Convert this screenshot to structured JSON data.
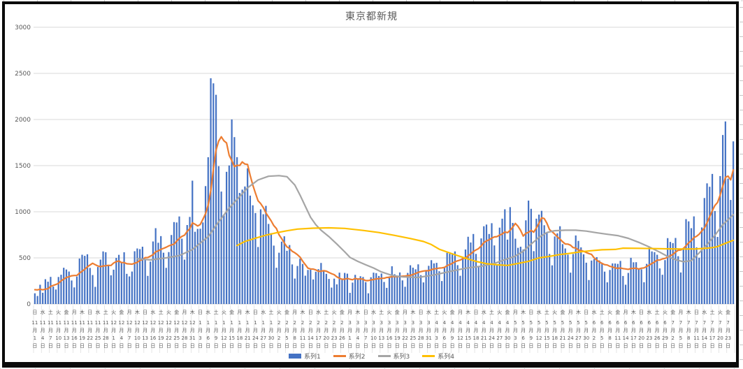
{
  "chart_data": {
    "type": "combo",
    "title": "東京都新規",
    "xlabel": "",
    "ylabel": "",
    "ylim": [
      0,
      3000
    ],
    "y_ticks": [
      0,
      500,
      1000,
      1500,
      2000,
      2500,
      3000
    ],
    "grid": "horizontal",
    "legend_position": "bottom",
    "x_is_daily_dates": "2020-11-01 through 2021-07-25, axis labels every 3 days",
    "month_suffix": "月",
    "day_suffix": "日",
    "axis_labels": [
      [
        "日",
        11,
        1
      ],
      [
        "水",
        11,
        4
      ],
      [
        "土",
        11,
        7
      ],
      [
        "火",
        11,
        10
      ],
      [
        "金",
        11,
        13
      ],
      [
        "月",
        11,
        16
      ],
      [
        "木",
        11,
        19
      ],
      [
        "日",
        11,
        22
      ],
      [
        "水",
        11,
        25
      ],
      [
        "土",
        11,
        28
      ],
      [
        "火",
        12,
        1
      ],
      [
        "金",
        12,
        4
      ],
      [
        "月",
        12,
        7
      ],
      [
        "木",
        12,
        10
      ],
      [
        "日",
        12,
        13
      ],
      [
        "水",
        12,
        16
      ],
      [
        "土",
        12,
        19
      ],
      [
        "火",
        12,
        22
      ],
      [
        "金",
        12,
        25
      ],
      [
        "月",
        12,
        28
      ],
      [
        "木",
        12,
        31
      ],
      [
        "日",
        1,
        3
      ],
      [
        "水",
        1,
        6
      ],
      [
        "土",
        1,
        9
      ],
      [
        "火",
        1,
        12
      ],
      [
        "金",
        1,
        15
      ],
      [
        "月",
        1,
        18
      ],
      [
        "木",
        1,
        21
      ],
      [
        "日",
        1,
        24
      ],
      [
        "水",
        1,
        27
      ],
      [
        "土",
        1,
        30
      ],
      [
        "火",
        2,
        2
      ],
      [
        "金",
        2,
        5
      ],
      [
        "月",
        2,
        8
      ],
      [
        "木",
        2,
        11
      ],
      [
        "日",
        2,
        14
      ],
      [
        "水",
        2,
        17
      ],
      [
        "土",
        2,
        20
      ],
      [
        "火",
        2,
        23
      ],
      [
        "金",
        2,
        26
      ],
      [
        "月",
        3,
        1
      ],
      [
        "木",
        3,
        4
      ],
      [
        "日",
        3,
        7
      ],
      [
        "水",
        3,
        10
      ],
      [
        "土",
        3,
        13
      ],
      [
        "火",
        3,
        16
      ],
      [
        "金",
        3,
        19
      ],
      [
        "月",
        3,
        22
      ],
      [
        "木",
        3,
        25
      ],
      [
        "日",
        3,
        28
      ],
      [
        "水",
        3,
        31
      ],
      [
        "土",
        4,
        3
      ],
      [
        "火",
        4,
        6
      ],
      [
        "金",
        4,
        9
      ],
      [
        "月",
        4,
        12
      ],
      [
        "木",
        4,
        15
      ],
      [
        "日",
        4,
        18
      ],
      [
        "水",
        4,
        21
      ],
      [
        "土",
        4,
        24
      ],
      [
        "火",
        4,
        27
      ],
      [
        "金",
        4,
        30
      ],
      [
        "月",
        5,
        3
      ],
      [
        "木",
        5,
        6
      ],
      [
        "日",
        5,
        9
      ],
      [
        "水",
        5,
        12
      ],
      [
        "土",
        5,
        15
      ],
      [
        "火",
        5,
        18
      ],
      [
        "金",
        5,
        21
      ],
      [
        "月",
        5,
        24
      ],
      [
        "木",
        5,
        27
      ],
      [
        "日",
        5,
        30
      ],
      [
        "水",
        6,
        2
      ],
      [
        "土",
        6,
        5
      ],
      [
        "火",
        6,
        8
      ],
      [
        "金",
        6,
        11
      ],
      [
        "月",
        6,
        14
      ],
      [
        "木",
        6,
        17
      ],
      [
        "日",
        6,
        20
      ],
      [
        "水",
        6,
        23
      ],
      [
        "土",
        6,
        26
      ],
      [
        "火",
        6,
        29
      ],
      [
        "金",
        7,
        2
      ],
      [
        "月",
        7,
        5
      ],
      [
        "木",
        7,
        8
      ],
      [
        "日",
        7,
        11
      ],
      [
        "水",
        7,
        14
      ],
      [
        "土",
        7,
        17
      ],
      [
        "火",
        7,
        20
      ],
      [
        "金",
        7,
        23
      ]
    ],
    "series": [
      {
        "name": "系列1",
        "type": "bar",
        "color": "#4472C4",
        "values": [
          116,
          87,
          209,
          122,
          269,
          242,
          294,
          189,
          157,
          293,
          317,
          393,
          374,
          352,
          255,
          180,
          298,
          493,
          534,
          522,
          539,
          391,
          314,
          186,
          401,
          481,
          570,
          561,
          418,
          311,
          372,
          500,
          533,
          449,
          561,
          327,
          299,
          352,
          572,
          602,
          595,
          621,
          480,
          305,
          460,
          678,
          822,
          664,
          736,
          556,
          392,
          563,
          748,
          888,
          884,
          949,
          708,
          481,
          856,
          944,
          1337,
          783,
          814,
          816,
          884,
          1278,
          1591,
          2447,
          2392,
          2268,
          1494,
          1219,
          970,
          1433,
          1502,
          2001,
          1809,
          1592,
          1204,
          1240,
          1274,
          1471,
          1175,
          1070,
          986,
          618,
          1026,
          973,
          1064,
          868,
          769,
          633,
          393,
          556,
          676,
          734,
          577,
          639,
          429,
          276,
          412,
          491,
          434,
          307,
          369,
          371,
          266,
          350,
          378,
          445,
          353,
          327,
          272,
          178,
          275,
          213,
          340,
          270,
          337,
          329,
          121,
          232,
          316,
          279,
          301,
          293,
          237,
          116,
          290,
          340,
          335,
          304,
          330,
          239,
          175,
          300,
          409,
          323,
          303,
          342,
          256,
          187,
          337,
          420,
          394,
          376,
          430,
          313,
          234,
          364,
          414,
          475,
          440,
          446,
          355,
          249,
          399,
          555,
          545,
          537,
          570,
          421,
          306,
          510,
          591,
          729,
          667,
          759,
          543,
          405,
          711,
          843,
          861,
          759,
          876,
          635,
          425,
          828,
          925,
          1027,
          698,
          1050,
          879,
          708,
          609,
          621,
          591,
          907,
          1121,
          1032,
          573,
          925,
          969,
          1010,
          854,
          772,
          542,
          419,
          732,
          766,
          843,
          649,
          602,
          535,
          340,
          542,
          743,
          684,
          614,
          539,
          448,
          260,
          471,
          487,
          508,
          472,
          436,
          351,
          235,
          369,
          440,
          439,
          435,
          467,
          304,
          209,
          337,
          501,
          452,
          453,
          388,
          376,
          236,
          435,
          619,
          570,
          562,
          534,
          386,
          317,
          476,
          714,
          673,
          660,
          716,
          518,
          342,
          593,
          920,
          896,
          822,
          950,
          614,
          502,
          830,
          1149,
          1308,
          1271,
          1410,
          1008,
          727,
          1387,
          1832,
          1979,
          1359,
          1128,
          1763
        ]
      },
      {
        "name": "系列2",
        "type": "line",
        "color": "#ED7D31",
        "derivation": "7-day moving average of 系列1",
        "prev_tail": [
          102,
          158,
          171,
          221,
          204,
          116
        ]
      },
      {
        "name": "系列3",
        "type": "line",
        "color": "#A5A5A5",
        "points": [
          [
            39,
            490
          ],
          [
            44,
            478
          ],
          [
            50,
            500
          ],
          [
            55,
            525
          ],
          [
            60,
            590
          ],
          [
            63,
            660
          ],
          [
            66,
            730
          ],
          [
            70,
            890
          ],
          [
            74,
            1040
          ],
          [
            78,
            1165
          ],
          [
            81,
            1260
          ],
          [
            85,
            1345
          ],
          [
            89,
            1385
          ],
          [
            93,
            1392
          ],
          [
            96,
            1380
          ],
          [
            99,
            1290
          ],
          [
            101,
            1180
          ],
          [
            103,
            1060
          ],
          [
            105,
            940
          ],
          [
            107,
            860
          ],
          [
            109,
            800
          ],
          [
            112,
            730
          ],
          [
            115,
            650
          ],
          [
            118,
            565
          ],
          [
            120,
            505
          ],
          [
            123,
            462
          ],
          [
            126,
            425
          ],
          [
            129,
            390
          ],
          [
            132,
            348
          ],
          [
            136,
            310
          ],
          [
            140,
            294
          ],
          [
            146,
            288
          ],
          [
            152,
            315
          ],
          [
            158,
            352
          ],
          [
            164,
            388
          ],
          [
            170,
            410
          ],
          [
            175,
            440
          ],
          [
            180,
            490
          ],
          [
            183,
            520
          ],
          [
            186,
            572
          ],
          [
            189,
            650
          ],
          [
            192,
            722
          ],
          [
            195,
            775
          ],
          [
            198,
            795
          ],
          [
            202,
            800
          ],
          [
            206,
            800
          ],
          [
            210,
            790
          ],
          [
            214,
            772
          ],
          [
            218,
            756
          ],
          [
            222,
            742
          ],
          [
            226,
            712
          ],
          [
            230,
            668
          ],
          [
            234,
            618
          ],
          [
            238,
            562
          ],
          [
            241,
            515
          ],
          [
            244,
            480
          ],
          [
            247,
            458
          ],
          [
            250,
            470
          ],
          [
            253,
            554
          ],
          [
            256,
            645
          ],
          [
            259,
            745
          ],
          [
            262,
            860
          ],
          [
            266,
            968
          ]
        ]
      },
      {
        "name": "系列4",
        "type": "line",
        "color": "#FFC000",
        "points": [
          [
            77,
            634
          ],
          [
            80,
            678
          ],
          [
            84,
            714
          ],
          [
            88,
            746
          ],
          [
            92,
            772
          ],
          [
            96,
            794
          ],
          [
            100,
            812
          ],
          [
            106,
            822
          ],
          [
            112,
            826
          ],
          [
            118,
            820
          ],
          [
            125,
            798
          ],
          [
            131,
            775
          ],
          [
            137,
            744
          ],
          [
            143,
            710
          ],
          [
            148,
            678
          ],
          [
            151,
            645
          ],
          [
            154,
            594
          ],
          [
            157,
            564
          ],
          [
            160,
            534
          ],
          [
            164,
            497
          ],
          [
            168,
            462
          ],
          [
            172,
            437
          ],
          [
            176,
            425
          ],
          [
            180,
            418
          ],
          [
            184,
            440
          ],
          [
            188,
            463
          ],
          [
            192,
            500
          ],
          [
            196,
            517
          ],
          [
            200,
            536
          ],
          [
            204,
            550
          ],
          [
            208,
            567
          ],
          [
            212,
            578
          ],
          [
            216,
            588
          ],
          [
            221,
            592
          ],
          [
            224,
            605
          ],
          [
            230,
            604
          ],
          [
            236,
            601
          ],
          [
            242,
            598
          ],
          [
            248,
            596
          ],
          [
            252,
            598
          ],
          [
            256,
            605
          ],
          [
            258,
            611
          ],
          [
            260,
            623
          ],
          [
            262,
            646
          ],
          [
            264,
            669
          ],
          [
            266,
            690
          ]
        ]
      }
    ]
  },
  "legend": {
    "items": [
      {
        "label": "系列1",
        "color": "#4472C4",
        "marker": "bar"
      },
      {
        "label": "系列2",
        "color": "#ED7D31",
        "marker": "line"
      },
      {
        "label": "系列3",
        "color": "#A5A5A5",
        "marker": "line"
      },
      {
        "label": "系列4",
        "color": "#FFC000",
        "marker": "line"
      }
    ]
  },
  "style": {
    "gridline_color": "#D9D9D9",
    "separator_color": "#DDDDDD",
    "axis_text_color": "#595959",
    "border_color": "#0B0B0B"
  }
}
